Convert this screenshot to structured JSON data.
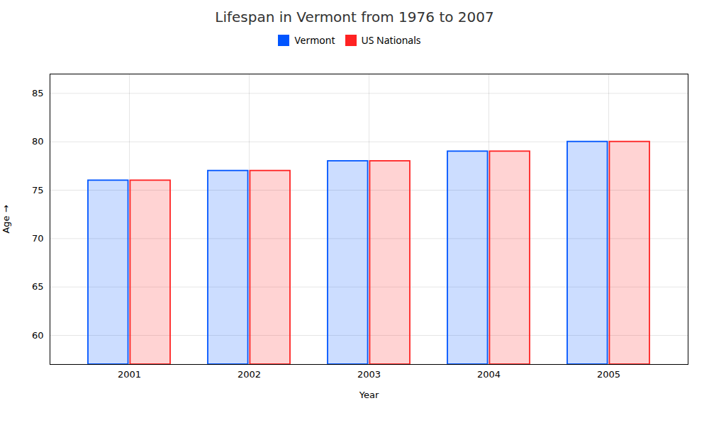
{
  "chart_data": {
    "type": "bar",
    "title": "Lifespan in Vermont from 1976 to 2007",
    "xlabel": "Year",
    "ylabel": "Age",
    "categories": [
      "2001",
      "2002",
      "2003",
      "2004",
      "2005"
    ],
    "series": [
      {
        "name": "Vermont",
        "color": "#0055ff",
        "values": [
          76,
          77,
          78,
          79,
          80
        ]
      },
      {
        "name": "US Nationals",
        "color": "#ff2222",
        "values": [
          76,
          77,
          78,
          79,
          80
        ]
      }
    ],
    "ylim": [
      57,
      87
    ],
    "yticks": [
      60,
      65,
      70,
      75,
      80,
      85
    ],
    "grid": true,
    "legend": "top"
  }
}
